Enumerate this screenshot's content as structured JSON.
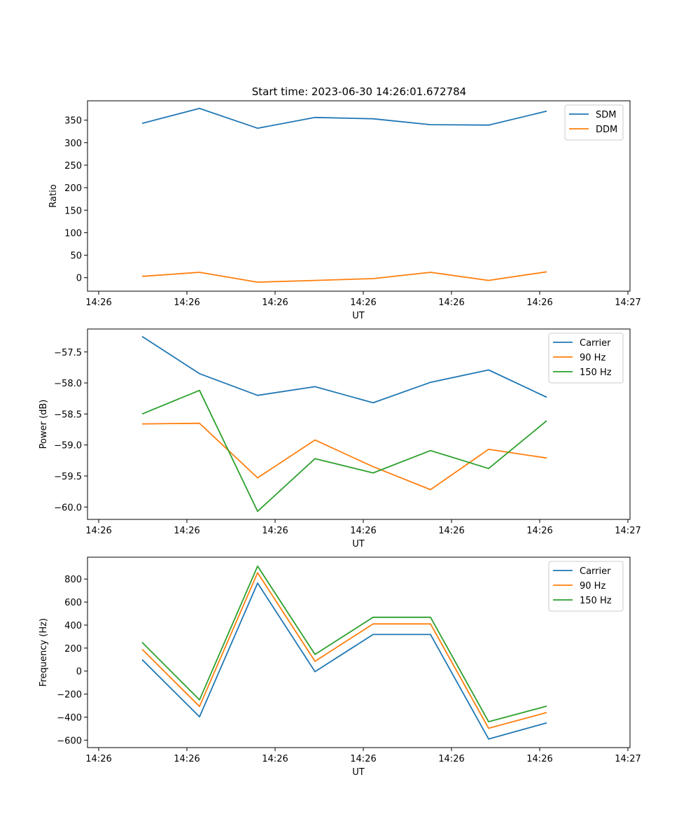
{
  "title": "Start time: 2023-06-30 14:26:01.672784",
  "chart_data": [
    {
      "type": "line",
      "title": "Start time: 2023-06-30 14:26:01.672784",
      "xlabel": "UT",
      "ylabel": "Ratio",
      "x_tick_labels": [
        "14:26",
        "14:26",
        "14:26",
        "14:26",
        "14:26",
        "14:26",
        "14:27"
      ],
      "ylim": [
        -30,
        393
      ],
      "y_ticks": [
        0,
        50,
        100,
        150,
        200,
        250,
        300,
        350
      ],
      "y_tick_labels": [
        "0",
        "50",
        "100",
        "150",
        "200",
        "250",
        "300",
        "350"
      ],
      "legend": "top-right",
      "series": [
        {
          "name": "SDM",
          "color": "#1f77b4",
          "values": [
            343,
            376,
            332,
            356,
            353,
            340,
            339,
            370
          ]
        },
        {
          "name": "DDM",
          "color": "#ff7f0e",
          "values": [
            3,
            12,
            -10,
            -6,
            -2,
            12,
            -6,
            13
          ]
        }
      ]
    },
    {
      "type": "line",
      "title": "",
      "xlabel": "UT",
      "ylabel": "Power (dB)",
      "x_tick_labels": [
        "14:26",
        "14:26",
        "14:26",
        "14:26",
        "14:26",
        "14:26",
        "14:27"
      ],
      "ylim": [
        -60.2,
        -57.13
      ],
      "y_ticks": [
        -60.0,
        -59.5,
        -59.0,
        -58.5,
        -58.0,
        -57.5
      ],
      "y_tick_labels": [
        "−60.0",
        "−59.5",
        "−59.0",
        "−58.5",
        "−58.0",
        "−57.5"
      ],
      "legend": "top-right",
      "series": [
        {
          "name": "Carrier",
          "color": "#1f77b4",
          "values": [
            -57.25,
            -57.85,
            -58.2,
            -58.06,
            -58.32,
            -57.99,
            -57.79,
            -58.23
          ]
        },
        {
          "name": "90 Hz",
          "color": "#ff7f0e",
          "values": [
            -58.66,
            -58.65,
            -59.53,
            -58.92,
            -59.35,
            -59.72,
            -59.07,
            -59.21
          ]
        },
        {
          "name": "150 Hz",
          "color": "#2ca02c",
          "values": [
            -58.5,
            -58.12,
            -60.07,
            -59.22,
            -59.45,
            -59.09,
            -59.38,
            -58.61
          ]
        }
      ]
    },
    {
      "type": "line",
      "title": "",
      "xlabel": "UT",
      "ylabel": "Frequency (Hz)",
      "x_tick_labels": [
        "14:26",
        "14:26",
        "14:26",
        "14:26",
        "14:26",
        "14:26",
        "14:27"
      ],
      "ylim": [
        -665,
        990
      ],
      "y_ticks": [
        -600,
        -400,
        -200,
        0,
        200,
        400,
        600,
        800
      ],
      "y_tick_labels": [
        "−600",
        "−400",
        "−200",
        "0",
        "200",
        "400",
        "600",
        "800"
      ],
      "legend": "top-right",
      "series": [
        {
          "name": "Carrier",
          "color": "#1f77b4",
          "values": [
            100,
            -397,
            765,
            -5,
            318,
            318,
            -590,
            -450
          ]
        },
        {
          "name": "90 Hz",
          "color": "#ff7f0e",
          "values": [
            190,
            -307,
            855,
            85,
            410,
            410,
            -497,
            -360
          ]
        },
        {
          "name": "150 Hz",
          "color": "#2ca02c",
          "values": [
            250,
            -250,
            912,
            145,
            468,
            468,
            -440,
            -305
          ]
        }
      ]
    }
  ]
}
